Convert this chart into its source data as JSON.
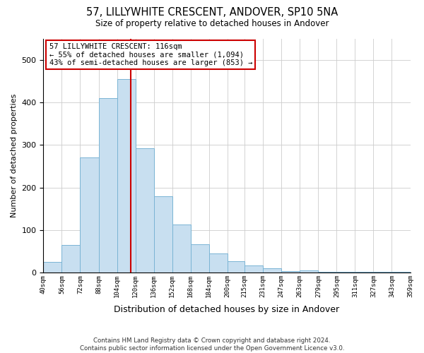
{
  "title": "57, LILLYWHITE CRESCENT, ANDOVER, SP10 5NA",
  "subtitle": "Size of property relative to detached houses in Andover",
  "xlabel": "Distribution of detached houses by size in Andover",
  "ylabel": "Number of detached properties",
  "bar_color": "#c8dff0",
  "bar_edge_color": "#7ab4d4",
  "bin_edges": [
    40,
    56,
    72,
    88,
    104,
    120,
    136,
    152,
    168,
    184,
    200,
    215,
    231,
    247,
    263,
    279,
    295,
    311,
    327,
    343,
    359
  ],
  "bar_heights": [
    25,
    65,
    270,
    410,
    455,
    293,
    180,
    113,
    67,
    44,
    27,
    17,
    10,
    3,
    5,
    2,
    2,
    2,
    2,
    2
  ],
  "tick_labels": [
    "40sqm",
    "56sqm",
    "72sqm",
    "88sqm",
    "104sqm",
    "120sqm",
    "136sqm",
    "152sqm",
    "168sqm",
    "184sqm",
    "200sqm",
    "215sqm",
    "231sqm",
    "247sqm",
    "263sqm",
    "279sqm",
    "295sqm",
    "311sqm",
    "327sqm",
    "343sqm",
    "359sqm"
  ],
  "vline_x": 116,
  "vline_color": "#cc0000",
  "annotation_line1": "57 LILLYWHITE CRESCENT: 116sqm",
  "annotation_line2": "← 55% of detached houses are smaller (1,094)",
  "annotation_line3": "43% of semi-detached houses are larger (853) →",
  "ylim": [
    0,
    550
  ],
  "footnote_line1": "Contains HM Land Registry data © Crown copyright and database right 2024.",
  "footnote_line2": "Contains public sector information licensed under the Open Government Licence v3.0.",
  "background_color": "#ffffff",
  "grid_color": "#cccccc"
}
